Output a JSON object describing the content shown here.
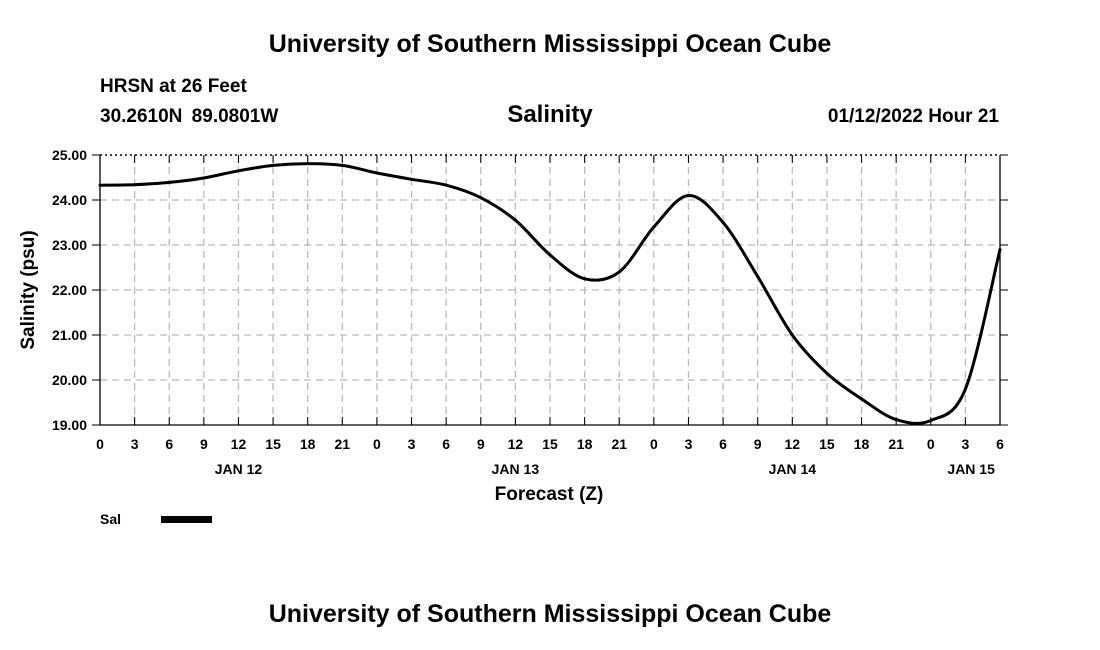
{
  "header": {
    "title": "University of Southern Mississippi Ocean Cube",
    "station": "HRSN at 26 Feet",
    "coords": "30.2610N  89.0801W",
    "chart_name": "Salinity",
    "datestamp": "01/12/2022 Hour 21"
  },
  "footer": {
    "title": "University of Southern Mississippi Ocean Cube"
  },
  "colors": {
    "line": "#000000",
    "grid": "#bbbbbb",
    "background": "#ffffff"
  },
  "chart_data": {
    "type": "line",
    "title": "Salinity",
    "xlabel": "Forecast (Z)",
    "ylabel": "Salinity (psu)",
    "x_unit": "hours from JAN 12 00Z",
    "xlim": [
      0,
      78
    ],
    "ylim": [
      19.0,
      25.0
    ],
    "grid": true,
    "x_ticks": [
      0,
      3,
      6,
      9,
      12,
      15,
      18,
      21,
      24,
      27,
      30,
      33,
      36,
      39,
      42,
      45,
      48,
      51,
      54,
      57,
      60,
      63,
      66,
      69,
      72,
      75,
      78
    ],
    "x_tick_labels": [
      "0",
      "3",
      "6",
      "9",
      "12",
      "15",
      "18",
      "21",
      "0",
      "3",
      "6",
      "9",
      "12",
      "15",
      "18",
      "21",
      "0",
      "3",
      "6",
      "9",
      "12",
      "15",
      "18",
      "21",
      "0",
      "3",
      "6"
    ],
    "y_ticks": [
      19,
      20,
      21,
      22,
      23,
      24,
      25
    ],
    "y_tick_labels": [
      "19.00",
      "20.00",
      "21.00",
      "22.00",
      "23.00",
      "24.00",
      "25.00"
    ],
    "date_labels": [
      {
        "label": "JAN 12",
        "x": 12
      },
      {
        "label": "JAN 13",
        "x": 36
      },
      {
        "label": "JAN 14",
        "x": 60
      },
      {
        "label": "JAN 15",
        "x": 75.5
      }
    ],
    "legend": [
      {
        "name": "Sal",
        "position": "bottom-left"
      }
    ],
    "series": [
      {
        "name": "Sal",
        "x": [
          0,
          3,
          6,
          9,
          12,
          15,
          18,
          21,
          24,
          27,
          30,
          33,
          36,
          39,
          42,
          45,
          48,
          51,
          54,
          57,
          60,
          63,
          66,
          69,
          72,
          75,
          78
        ],
        "values": [
          24.33,
          24.34,
          24.39,
          24.49,
          24.65,
          24.77,
          24.81,
          24.77,
          24.6,
          24.46,
          24.33,
          24.05,
          23.55,
          22.78,
          22.25,
          22.4,
          23.4,
          24.1,
          23.5,
          22.3,
          21.0,
          20.15,
          19.58,
          19.12,
          19.1,
          19.8,
          22.9
        ]
      }
    ]
  }
}
